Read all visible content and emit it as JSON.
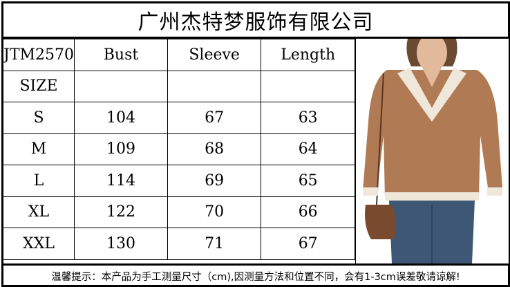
{
  "title": "广州杰特梦服饰有限公司",
  "headers": [
    "JTM2570",
    "Bust",
    "Sleeve",
    "Length"
  ],
  "size_label": "SIZE",
  "rows": [
    [
      "S",
      "104",
      "67",
      "63"
    ],
    [
      "M",
      "109",
      "68",
      "64"
    ],
    [
      "L",
      "114",
      "69",
      "65"
    ],
    [
      "XL",
      "122",
      "70",
      "66"
    ],
    [
      "XXL",
      "130",
      "71",
      "67"
    ]
  ],
  "footer_note": "温馨提示：本产品为手工测量尺寸（cm),因测量方法和位置不同，会有1-3cm误差敬请谅解!",
  "colors": {
    "sweater": "#b07a54",
    "collar": "#efe8da",
    "jeans": "#3d5775",
    "bag": "#7a4a2e"
  }
}
